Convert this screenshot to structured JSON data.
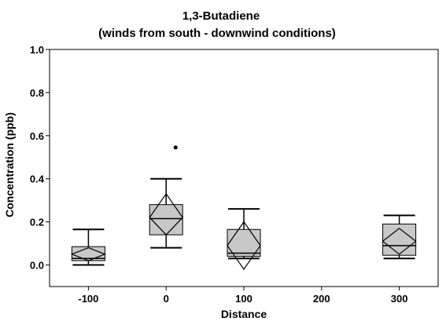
{
  "chart_data": {
    "type": "boxplot",
    "title": "1,3-Butadiene",
    "subtitle": "(winds from south - downwind conditions)",
    "xlabel": "Distance",
    "ylabel": "Concentration (ppb)",
    "xlim": [
      -150,
      350
    ],
    "ylim": [
      -0.1,
      1.0
    ],
    "x_ticks": [
      -100,
      0,
      100,
      200,
      300
    ],
    "x_tick_labels": [
      "-100",
      "0",
      "100",
      "200",
      "300"
    ],
    "y_ticks": [
      0.0,
      0.2,
      0.4,
      0.6,
      0.8,
      1.0
    ],
    "y_tick_labels": [
      "0.0",
      "0.2",
      "0.4",
      "0.6",
      "0.8",
      "1.0"
    ],
    "box_fill": "#c8c8c8",
    "groups": [
      {
        "x": -100,
        "whisker_low": 0.0,
        "q1": 0.02,
        "median": 0.03,
        "q3": 0.085,
        "whisker_high": 0.165,
        "mean": 0.05,
        "ci_low": 0.02,
        "ci_high": 0.08,
        "outliers": []
      },
      {
        "x": 0,
        "whisker_low": 0.08,
        "q1": 0.14,
        "median": 0.215,
        "q3": 0.28,
        "whisker_high": 0.4,
        "mean": 0.22,
        "ci_low": 0.14,
        "ci_high": 0.33,
        "outliers": [
          0.545
        ]
      },
      {
        "x": 100,
        "whisker_low": 0.03,
        "q1": 0.04,
        "median": 0.055,
        "q3": 0.165,
        "whisker_high": 0.26,
        "mean": 0.09,
        "ci_low": -0.02,
        "ci_high": 0.2,
        "outliers": []
      },
      {
        "x": 300,
        "whisker_low": 0.03,
        "q1": 0.045,
        "median": 0.09,
        "q3": 0.19,
        "whisker_high": 0.23,
        "mean": 0.11,
        "ci_low": 0.05,
        "ci_high": 0.17,
        "outliers": []
      }
    ]
  }
}
